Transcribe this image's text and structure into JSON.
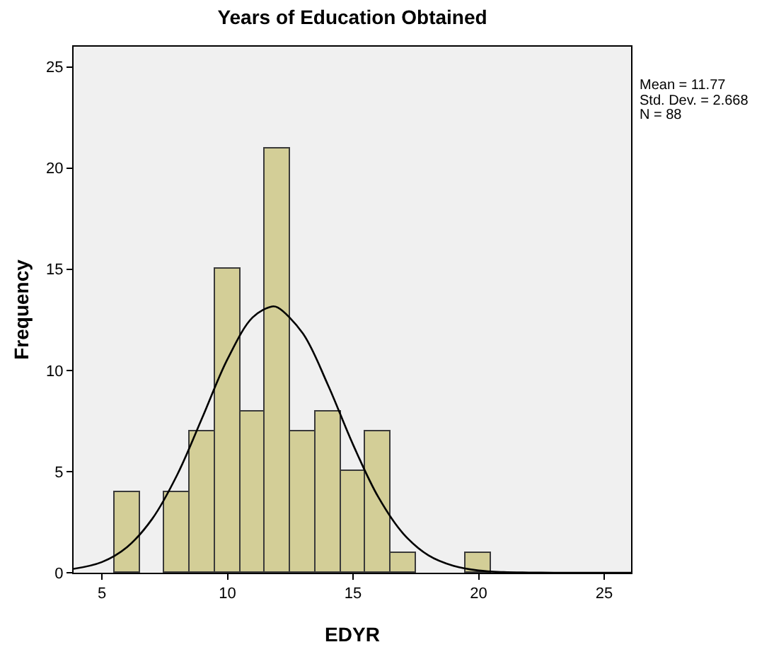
{
  "chart_data": {
    "type": "histogram",
    "title": "Years of Education Obtained",
    "xlabel": "EDYR",
    "ylabel": "Frequency",
    "bins": [
      5.5,
      6.5,
      7.5,
      8.5,
      9.5,
      10.5,
      11.5,
      12.5,
      13.5,
      14.5,
      15.5,
      16.5,
      17.5,
      18.5,
      19.5,
      20.5
    ],
    "values": [
      4,
      0,
      4,
      7,
      15,
      8,
      21,
      7,
      8,
      5,
      7,
      1,
      0,
      0,
      1
    ],
    "color": "#d3ce97",
    "series": [
      {
        "type": "line",
        "color": "#000000",
        "x": [
          3.87,
          5,
          6,
          7,
          8,
          9,
          10,
          11,
          11.77,
          12,
          13,
          14,
          15,
          16,
          17,
          18,
          19,
          20,
          21,
          22,
          23,
          24,
          26.07
        ],
        "values": [
          0.19,
          0.53,
          1.27,
          2.66,
          4.85,
          7.68,
          10.56,
          12.62,
          13.16,
          13.11,
          11.83,
          9.28,
          6.33,
          3.75,
          1.93,
          0.86,
          0.34,
          0.11,
          0.03,
          0.01,
          0,
          0,
          0
        ]
      }
    ],
    "xlim": [
      3.87,
      26.07
    ],
    "ylim": [
      0,
      26
    ],
    "xticks": [
      5,
      10,
      15,
      20,
      25
    ],
    "yticks": [
      0,
      5,
      10,
      15,
      20,
      25
    ],
    "grid": false,
    "annotations": [
      "Mean = 11.77",
      "Std. Dev. = 2.668",
      "N = 88"
    ]
  }
}
